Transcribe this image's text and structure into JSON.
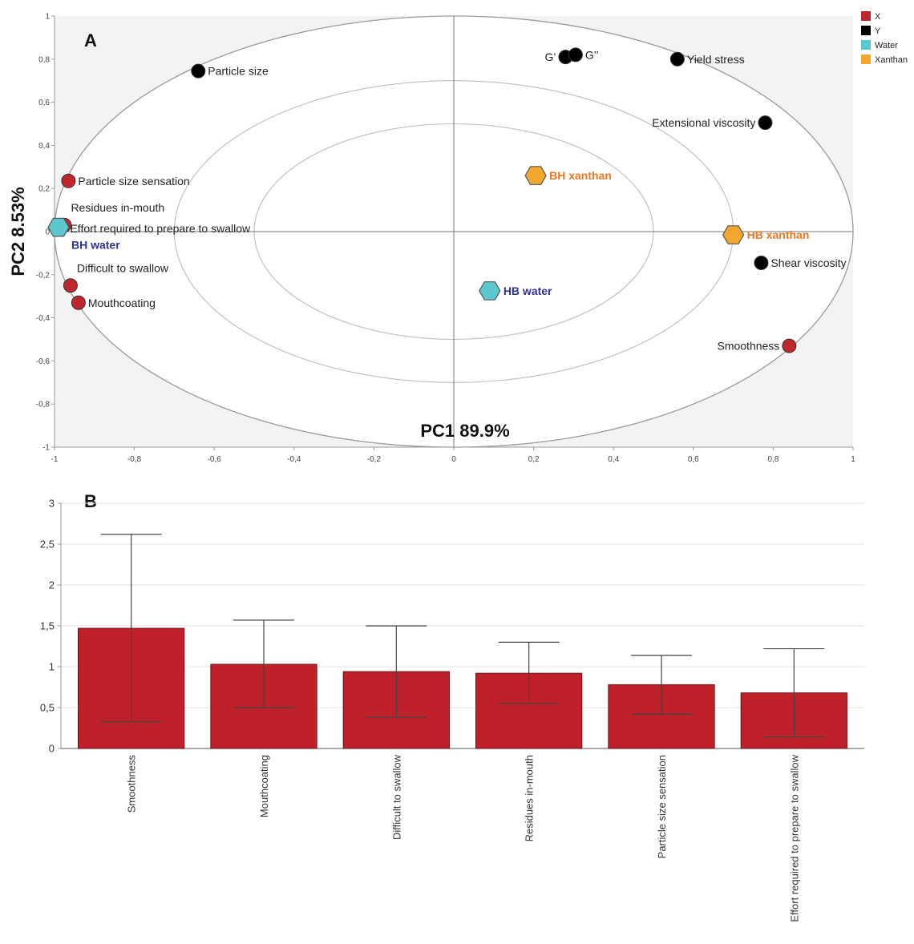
{
  "chart_data": [
    {
      "type": "scatter",
      "panel_label": "A",
      "xlabel": "PC1 89.9%",
      "ylabel": "PC2 8.53%",
      "xlim": [
        -1,
        1
      ],
      "ylim": [
        -1,
        1
      ],
      "x_ticks": [
        "-1",
        "-0,8",
        "-0,6",
        "-0,4",
        "-0,2",
        "0",
        "0,2",
        "0,4",
        "0,6",
        "0,8",
        "1"
      ],
      "y_ticks": [
        "-1",
        "-0,8",
        "-0,6",
        "-0,4",
        "-0,2",
        "0",
        "0,2",
        "0,4",
        "0,6",
        "0,8",
        "1"
      ],
      "legend": [
        {
          "label": "X",
          "color": "#c0272d"
        },
        {
          "label": "Y",
          "color": "#000000"
        },
        {
          "label": "Water",
          "color": "#5bc8cf"
        },
        {
          "label": "Xanthan",
          "color": "#f2a72e"
        }
      ],
      "legend_position": "top-right",
      "points": [
        {
          "group": "Y",
          "x": -0.64,
          "y": 0.745,
          "label": "Particle size",
          "label_side": "right",
          "color": "#000000"
        },
        {
          "group": "Y",
          "x": 0.28,
          "y": 0.81,
          "label": "G’",
          "label_side": "left",
          "color": "#000000"
        },
        {
          "group": "Y",
          "x": 0.305,
          "y": 0.82,
          "label": "G’’",
          "label_side": "right",
          "color": "#000000"
        },
        {
          "group": "Y",
          "x": 0.56,
          "y": 0.8,
          "label": "Yield stress",
          "label_side": "right",
          "color": "#000000"
        },
        {
          "group": "Y",
          "x": 0.78,
          "y": 0.505,
          "label": "Extensional viscosity",
          "label_side": "left",
          "color": "#000000"
        },
        {
          "group": "Y",
          "x": 0.77,
          "y": -0.145,
          "label": "Shear viscosity",
          "label_side": "right",
          "color": "#000000"
        },
        {
          "group": "X",
          "x": -0.965,
          "y": 0.235,
          "label": "Particle size sensation",
          "label_side": "right",
          "color": "#c0272d"
        },
        {
          "group": "X",
          "x": -0.975,
          "y": 0.03,
          "label": "Residues in-mouth",
          "label_side": "above-right",
          "color": "#c0272d"
        },
        {
          "group": "X",
          "x": -0.985,
          "y": 0.015,
          "label": "Effort required to prepare to swallow",
          "label_side": "right",
          "color": "#c0272d"
        },
        {
          "group": "X",
          "x": -0.96,
          "y": -0.25,
          "label": "Difficult to swallow",
          "label_side": "above-right",
          "color": "#c0272d"
        },
        {
          "group": "X",
          "x": -0.94,
          "y": -0.33,
          "label": "Mouthcoating",
          "label_side": "right",
          "color": "#c0272d"
        },
        {
          "group": "X",
          "x": 0.84,
          "y": -0.53,
          "label": "Smoothness",
          "label_side": "left",
          "color": "#c0272d"
        },
        {
          "group": "Water",
          "x": -0.99,
          "y": 0.02,
          "label": "BH water",
          "label_side": "below-right",
          "color": "#5bc8cf",
          "text_color": "#2e3192",
          "shape": "hexagon"
        },
        {
          "group": "Water",
          "x": 0.09,
          "y": -0.275,
          "label": "HB water",
          "label_side": "right",
          "color": "#5bc8cf",
          "text_color": "#2e3192",
          "shape": "hexagon"
        },
        {
          "group": "Xanthan",
          "x": 0.205,
          "y": 0.26,
          "label": "BH xanthan",
          "label_side": "right",
          "color": "#f2a72e",
          "text_color": "#e87722",
          "shape": "hexagon"
        },
        {
          "group": "Xanthan",
          "x": 0.7,
          "y": -0.015,
          "label": "HB xanthan",
          "label_side": "right",
          "color": "#f2a72e",
          "text_color": "#e87722",
          "shape": "hexagon"
        }
      ],
      "ellipse_fractions": [
        1,
        0.7,
        0.5
      ]
    },
    {
      "type": "bar",
      "panel_label": "B",
      "categories": [
        "Smoothness",
        "Mouthcoating",
        "Difficult to swallow",
        "Residues in-mouth",
        "Particle size sensation",
        "Effort required to prepare to swallow"
      ],
      "values": [
        1.47,
        1.03,
        0.94,
        0.92,
        0.78,
        0.68
      ],
      "error_low": [
        0.33,
        0.5,
        0.38,
        0.55,
        0.42,
        0.14
      ],
      "error_high": [
        2.62,
        1.57,
        1.5,
        1.3,
        1.14,
        1.22
      ],
      "ylim": [
        0,
        3
      ],
      "y_ticks": [
        "0",
        "0,5",
        "1",
        "1,5",
        "2",
        "2,5",
        "3"
      ],
      "bar_color": "#c0202a"
    }
  ]
}
